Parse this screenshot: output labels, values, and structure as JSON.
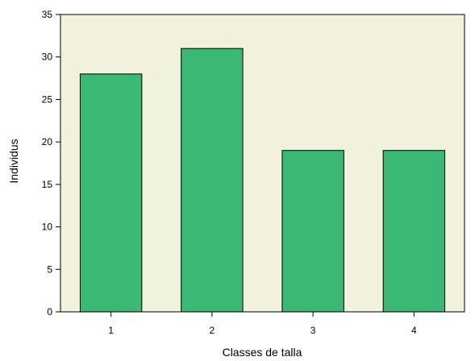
{
  "chart_data": {
    "type": "bar",
    "categories": [
      "1",
      "2",
      "3",
      "4"
    ],
    "values": [
      28,
      31,
      19,
      19
    ],
    "title": "",
    "xlabel": "Classes de talla",
    "ylabel": "Individus",
    "ylim": [
      0,
      35
    ],
    "yticks": [
      0,
      5,
      10,
      15,
      20,
      25,
      30,
      35
    ],
    "grid": false,
    "legend": "none"
  },
  "colors": {
    "plot_background": "#f2f3dd",
    "bar_fill": "#3bb873",
    "bar_stroke": "#000000",
    "axis": "#000000"
  }
}
